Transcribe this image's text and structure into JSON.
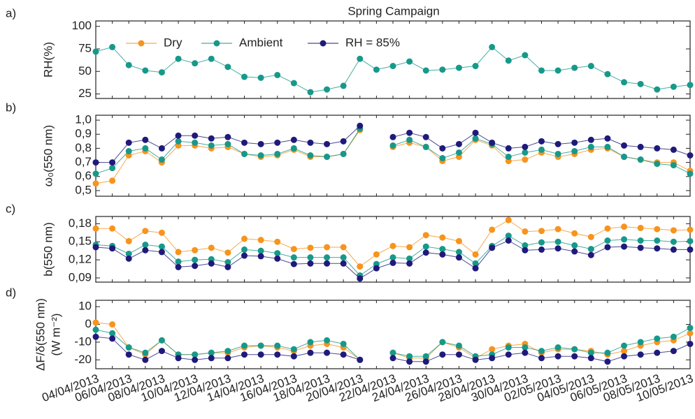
{
  "chart_data": [
    {
      "type": "line",
      "panel": "a)",
      "title": "Spring Campaign",
      "ylabel": [
        "RH(%)"
      ],
      "legend": "upper left",
      "ylim": [
        20,
        106
      ],
      "yticks": [
        25,
        50,
        75,
        100
      ],
      "series": [
        {
          "name": "Dry",
          "color": "#f7941d",
          "values": [
            null,
            null,
            null,
            null,
            null,
            null,
            null,
            null,
            null,
            null,
            null,
            null,
            null,
            null,
            null,
            null,
            null,
            null,
            null,
            null,
            null,
            null,
            null,
            null,
            null,
            null,
            null,
            null,
            null,
            null,
            null,
            null,
            null,
            null,
            null,
            null,
            null
          ]
        },
        {
          "name": "Ambient",
          "color": "#17998a",
          "values": [
            72,
            77,
            57,
            51,
            49,
            64,
            59,
            64,
            55,
            44,
            43,
            46,
            37,
            27,
            30,
            34,
            64,
            52,
            56,
            61,
            51,
            52,
            54,
            56,
            77,
            62,
            68,
            51,
            51,
            54,
            56,
            47,
            38,
            36,
            30,
            33,
            35
          ]
        },
        {
          "name": "RH = 85%",
          "color": "#1f1a7a",
          "values": [
            null,
            null,
            null,
            null,
            null,
            null,
            null,
            null,
            null,
            null,
            null,
            null,
            null,
            null,
            null,
            null,
            null,
            null,
            null,
            null,
            null,
            null,
            null,
            null,
            null,
            null,
            null,
            null,
            null,
            null,
            null,
            null,
            null,
            null,
            null,
            null,
            null
          ]
        }
      ]
    },
    {
      "type": "line",
      "panel": "b)",
      "ylabel": [
        "ω₀(550 nm)"
      ],
      "ylim": [
        0.46,
        1.035
      ],
      "yticks": [
        {
          "value": 0.5,
          "label": "0,5"
        },
        {
          "value": 0.6,
          "label": "0,6"
        },
        {
          "value": 0.7,
          "label": "0,7"
        },
        {
          "value": 0.8,
          "label": "0,8"
        },
        {
          "value": 0.9,
          "label": "0,9"
        },
        {
          "value": 1.0,
          "label": "1,0"
        }
      ],
      "series": [
        {
          "name": "Dry",
          "color": "#f7941d",
          "values": [
            0.55,
            0.57,
            0.75,
            0.78,
            0.7,
            0.82,
            0.82,
            0.8,
            0.81,
            0.76,
            0.74,
            0.75,
            0.79,
            0.74,
            0.74,
            0.76,
            0.93,
            null,
            0.81,
            0.84,
            0.81,
            0.71,
            0.74,
            0.86,
            0.82,
            0.71,
            0.72,
            0.77,
            0.74,
            0.76,
            0.79,
            0.8,
            0.74,
            0.72,
            0.7,
            0.7,
            0.64
          ]
        },
        {
          "name": "Ambient",
          "color": "#17998a",
          "values": [
            0.62,
            0.66,
            0.78,
            0.8,
            0.72,
            0.85,
            0.84,
            0.82,
            0.83,
            0.76,
            0.75,
            0.76,
            0.8,
            0.75,
            0.74,
            0.76,
            0.94,
            null,
            0.82,
            0.86,
            0.81,
            0.73,
            0.77,
            0.87,
            0.83,
            0.74,
            0.77,
            0.79,
            0.76,
            0.78,
            0.81,
            0.81,
            0.74,
            0.72,
            0.69,
            0.68,
            0.62
          ]
        },
        {
          "name": "RH = 85%",
          "color": "#1f1a7a",
          "values": [
            0.7,
            0.7,
            0.84,
            0.86,
            0.8,
            0.89,
            0.89,
            0.87,
            0.88,
            0.84,
            0.83,
            0.84,
            0.86,
            0.84,
            0.83,
            0.85,
            0.96,
            null,
            0.88,
            0.91,
            0.88,
            0.8,
            0.83,
            0.91,
            0.84,
            0.8,
            0.81,
            0.85,
            0.83,
            0.84,
            0.86,
            0.87,
            0.82,
            0.81,
            0.8,
            0.79,
            0.75
          ]
        }
      ]
    },
    {
      "type": "line",
      "panel": "c)",
      "ylabel": [
        "b(550 nm)"
      ],
      "ylim": [
        0.083,
        0.192
      ],
      "yticks": [
        {
          "value": 0.09,
          "label": "0,09"
        },
        {
          "value": 0.12,
          "label": "0,12"
        },
        {
          "value": 0.15,
          "label": "0,15"
        },
        {
          "value": 0.18,
          "label": "0,18"
        }
      ],
      "series": [
        {
          "name": "Dry",
          "color": "#f7941d",
          "values": [
            0.172,
            0.172,
            0.151,
            0.168,
            0.165,
            0.133,
            0.136,
            0.14,
            0.132,
            0.155,
            0.153,
            0.15,
            0.138,
            0.14,
            0.141,
            0.141,
            0.109,
            0.129,
            0.143,
            0.141,
            0.161,
            0.157,
            0.151,
            0.129,
            0.17,
            0.186,
            0.167,
            0.168,
            0.171,
            0.164,
            0.158,
            0.172,
            0.175,
            0.173,
            0.171,
            0.169,
            0.17
          ]
        },
        {
          "name": "Ambient",
          "color": "#17998a",
          "values": [
            0.145,
            0.143,
            0.13,
            0.145,
            0.142,
            0.117,
            0.12,
            0.121,
            0.116,
            0.137,
            0.135,
            0.131,
            0.124,
            0.124,
            0.124,
            0.124,
            0.094,
            0.113,
            0.124,
            0.122,
            0.142,
            0.138,
            0.133,
            0.114,
            0.143,
            0.16,
            0.144,
            0.149,
            0.15,
            0.144,
            0.138,
            0.152,
            0.154,
            0.152,
            0.152,
            0.15,
            0.151
          ]
        },
        {
          "name": "RH = 85%",
          "color": "#1f1a7a",
          "values": [
            0.141,
            0.139,
            0.122,
            0.136,
            0.133,
            0.108,
            0.11,
            0.114,
            0.108,
            0.127,
            0.126,
            0.122,
            0.113,
            0.114,
            0.114,
            0.114,
            0.089,
            0.106,
            0.115,
            0.114,
            0.132,
            0.129,
            0.124,
            0.106,
            0.14,
            0.152,
            0.136,
            0.137,
            0.139,
            0.134,
            0.128,
            0.141,
            0.142,
            0.14,
            0.139,
            0.137,
            0.137
          ]
        }
      ]
    },
    {
      "type": "line",
      "panel": "d)",
      "ylabel": [
        "ΔF/δ(550 nm)",
        "(W m⁻²)"
      ],
      "ylim": [
        -25,
        13.6
      ],
      "yticks": [
        -20,
        -10,
        0,
        10
      ],
      "categories": [
        "04/04/2013",
        null,
        "06/04/2013",
        null,
        "08/04/2013",
        null,
        "10/04/2013",
        null,
        "12/04/2013",
        null,
        "14/04/2013",
        null,
        "16/04/2013",
        null,
        "18/04/2013",
        null,
        "20/04/2013",
        null,
        "22/04/2013",
        null,
        "24/04/2013",
        null,
        "26/04/2013",
        null,
        "28/04/2013",
        null,
        "30/04/2013",
        null,
        "02/05/2013",
        null,
        "04/05/2013",
        null,
        "06/05/2013",
        null,
        "08/05/2013",
        null,
        "10/05/2013"
      ],
      "series": [
        {
          "name": "Dry",
          "color": "#f7941d",
          "values": [
            1,
            0,
            -13,
            -17,
            -9,
            -17,
            -17,
            -16,
            -16,
            -13,
            -12,
            -13,
            -15,
            -12,
            -11,
            -13,
            -20,
            null,
            -16,
            -19,
            -19,
            -10,
            -13,
            -19,
            -14,
            -12,
            -11,
            -16,
            -14,
            -14,
            -15,
            -17,
            -15,
            -12,
            -10,
            -9,
            -5
          ]
        },
        {
          "name": "Ambient",
          "color": "#17998a",
          "values": [
            -3,
            -5,
            -13,
            -16,
            -9,
            -17,
            -17,
            -16,
            -15,
            -12,
            -12,
            -12,
            -14,
            -10,
            -9,
            -11,
            -20,
            null,
            -16,
            -18,
            -18,
            -10,
            -12,
            -18,
            -17,
            -13,
            -13,
            -15,
            -13,
            -14,
            -16,
            -16,
            -12,
            -10,
            -8,
            -7,
            -2
          ]
        },
        {
          "name": "RH = 85%",
          "color": "#1f1a7a",
          "values": [
            -7,
            -8,
            -17,
            -20,
            -15,
            -19,
            -20,
            -19,
            -19,
            -17,
            -17,
            -17,
            -18,
            -16,
            -16,
            -17,
            -20,
            null,
            -19,
            -21,
            -21,
            -17,
            -17,
            -20,
            -19,
            -17,
            -16,
            -19,
            -18,
            -18,
            -19,
            -21,
            -18,
            -17,
            -16,
            -15,
            -11
          ]
        }
      ]
    }
  ]
}
